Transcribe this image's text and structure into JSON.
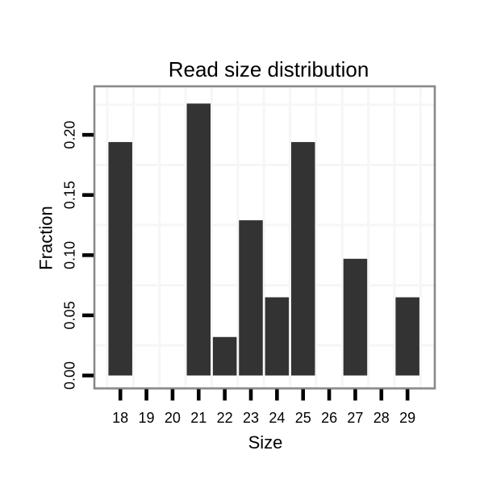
{
  "chart_data": {
    "type": "bar",
    "title": "Read size distribution",
    "xlabel": "Size",
    "ylabel": "Fraction",
    "categories": [
      "18",
      "19",
      "20",
      "21",
      "22",
      "23",
      "24",
      "25",
      "26",
      "27",
      "28",
      "29"
    ],
    "values": [
      0.194,
      0,
      0,
      0.226,
      0.032,
      0.129,
      0.065,
      0.194,
      0,
      0.097,
      0,
      0.065
    ],
    "ylim": [
      0,
      0.24
    ],
    "yticks": [
      {
        "value": 0.0,
        "label": "0.00"
      },
      {
        "value": 0.05,
        "label": "0.05"
      },
      {
        "value": 0.1,
        "label": "0.10"
      },
      {
        "value": 0.15,
        "label": "0.15"
      },
      {
        "value": 0.2,
        "label": "0.20"
      }
    ],
    "y_minor_gridlines": [
      0.025,
      0.075,
      0.125,
      0.175,
      0.225
    ],
    "grid": "minor-only",
    "legend": "none",
    "colors": {
      "bar": "#333333",
      "panel_border": "#898989",
      "gridline": "#f6f6f6",
      "tick": "#000000",
      "text": "#000000",
      "background": "#ffffff"
    }
  }
}
